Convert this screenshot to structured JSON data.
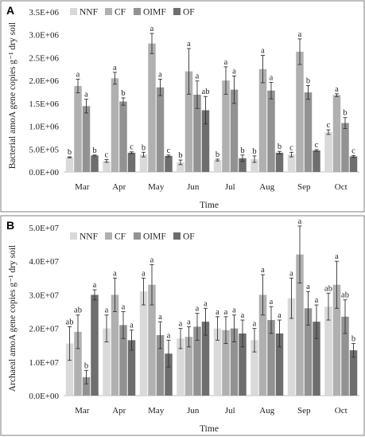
{
  "colors": {
    "NNF": "#d9d9d9",
    "CF": "#b0b0b0",
    "OIMF": "#929292",
    "OF": "#6e6e6e",
    "error_bar": "#333333"
  },
  "chart_data": [
    {
      "type": "bar",
      "panel": "A",
      "ylabel": "Bacterial amoA gene copies g⁻¹ dry soil",
      "xlabel": "Time",
      "categories": [
        "Mar",
        "Apr",
        "May",
        "Jun",
        "Jul",
        "Aug",
        "Sep",
        "Oct"
      ],
      "ylim": [
        0,
        3500000
      ],
      "yticks": [
        0,
        500000,
        1000000,
        1500000,
        2000000,
        2500000,
        3000000,
        3500000
      ],
      "ytick_labels": [
        "0.0E+00",
        "5.0E+05",
        "1.0E+06",
        "1.5E+06",
        "2.0E+06",
        "2.5E+06",
        "3.0E+06",
        "3.5E+06"
      ],
      "legend_position": "top-left",
      "grid": false,
      "series": [
        {
          "name": "NNF",
          "values": [
            320000,
            240000,
            380000,
            210000,
            260000,
            280000,
            380000,
            870000
          ],
          "errors": [
            10000,
            30000,
            50000,
            50000,
            20000,
            70000,
            50000,
            50000
          ],
          "labels": [
            "b",
            "c",
            "b",
            "b",
            "b",
            "b",
            "c",
            "c"
          ]
        },
        {
          "name": "CF",
          "values": [
            1880000,
            2050000,
            2810000,
            2200000,
            2000000,
            2250000,
            2630000,
            1680000
          ],
          "errors": [
            150000,
            130000,
            220000,
            500000,
            300000,
            300000,
            280000,
            30000
          ],
          "labels": [
            "a",
            "a",
            "a",
            "a",
            "a",
            "a",
            "a",
            "a"
          ]
        },
        {
          "name": "OIMF",
          "values": [
            1440000,
            1540000,
            1850000,
            1690000,
            1800000,
            1780000,
            1740000,
            1070000
          ],
          "errors": [
            150000,
            80000,
            180000,
            300000,
            300000,
            180000,
            150000,
            120000
          ],
          "labels": [
            "a",
            "b",
            "a",
            "a",
            "a",
            "a",
            "b",
            "b"
          ]
        },
        {
          "name": "OF",
          "values": [
            360000,
            420000,
            350000,
            1350000,
            300000,
            420000,
            470000,
            340000
          ],
          "errors": [
            10000,
            20000,
            20000,
            300000,
            70000,
            30000,
            20000,
            20000
          ],
          "labels": [
            "b",
            "c",
            "c",
            "ab",
            "b",
            "b",
            "c",
            "c"
          ]
        }
      ]
    },
    {
      "type": "bar",
      "panel": "B",
      "ylabel": "Archaeal amoA gene copies g⁻¹ dry soil",
      "xlabel": "Time",
      "categories": [
        "Mar",
        "Apr",
        "May",
        "Jun",
        "Jul",
        "Aug",
        "Sep",
        "Oct"
      ],
      "ylim": [
        0,
        50000000
      ],
      "yticks": [
        0,
        10000000,
        20000000,
        30000000,
        40000000,
        50000000
      ],
      "ytick_labels": [
        "0.0E+00",
        "1.0E+07",
        "2.0E+07",
        "3.0E+07",
        "4.0E+07",
        "5.0E+07"
      ],
      "legend_position": "top-left",
      "grid": false,
      "series": [
        {
          "name": "NNF",
          "values": [
            15500000,
            20000000,
            31000000,
            17000000,
            20000000,
            16500000,
            29000000,
            26500000
          ],
          "errors": [
            5000000,
            4000000,
            4000000,
            3000000,
            3500000,
            3500000,
            6000000,
            4000000
          ],
          "labels": [
            "ab",
            "a",
            "a",
            "a",
            "a",
            "a",
            "a",
            "ab"
          ]
        },
        {
          "name": "CF",
          "values": [
            19000000,
            30000000,
            33000000,
            17500000,
            19500000,
            30000000,
            42000000,
            33000000
          ],
          "errors": [
            5000000,
            5000000,
            6000000,
            3000000,
            4000000,
            6000000,
            8500000,
            7000000
          ],
          "labels": [
            "ab",
            "a",
            "a",
            "a",
            "a",
            "a",
            "a",
            "a"
          ]
        },
        {
          "name": "OIMF",
          "values": [
            5500000,
            21000000,
            18000000,
            20500000,
            20000000,
            22500000,
            26000000,
            23500000
          ],
          "errors": [
            2000000,
            4000000,
            4000000,
            4000000,
            4000000,
            4000000,
            5000000,
            5000000
          ],
          "labels": [
            "b",
            "a",
            "a",
            "a",
            "a",
            "a",
            "a",
            "ab"
          ]
        },
        {
          "name": "OF",
          "values": [
            30000000,
            16500000,
            12500000,
            22000000,
            18500000,
            18500000,
            22000000,
            13500000
          ],
          "errors": [
            1500000,
            3000000,
            4000000,
            4000000,
            4000000,
            4000000,
            5000000,
            2000000
          ],
          "labels": [
            "a",
            "a",
            "a",
            "a",
            "a",
            "a",
            "a",
            "b"
          ]
        }
      ]
    }
  ]
}
